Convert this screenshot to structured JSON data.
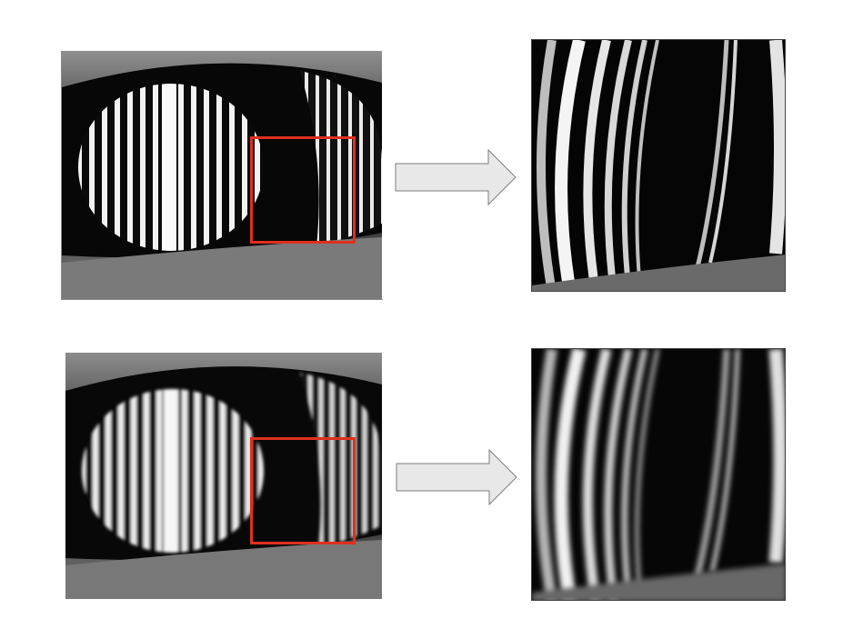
{
  "figure": {
    "rows": [
      {
        "id": "row1",
        "source_image": "fringe-photo-sharp",
        "zoom_image": "fringe-zoom-sharp",
        "arrow": "right-arrow-icon"
      },
      {
        "id": "row2",
        "source_image": "fringe-photo-blurred",
        "zoom_image": "fringe-zoom-blurred",
        "arrow": "right-arrow-icon"
      }
    ]
  },
  "colors": {
    "roi_box": "#e0301e",
    "arrow_fill": "#e8e8e8",
    "arrow_stroke": "#7d7d7d",
    "background": "#ffffff"
  }
}
